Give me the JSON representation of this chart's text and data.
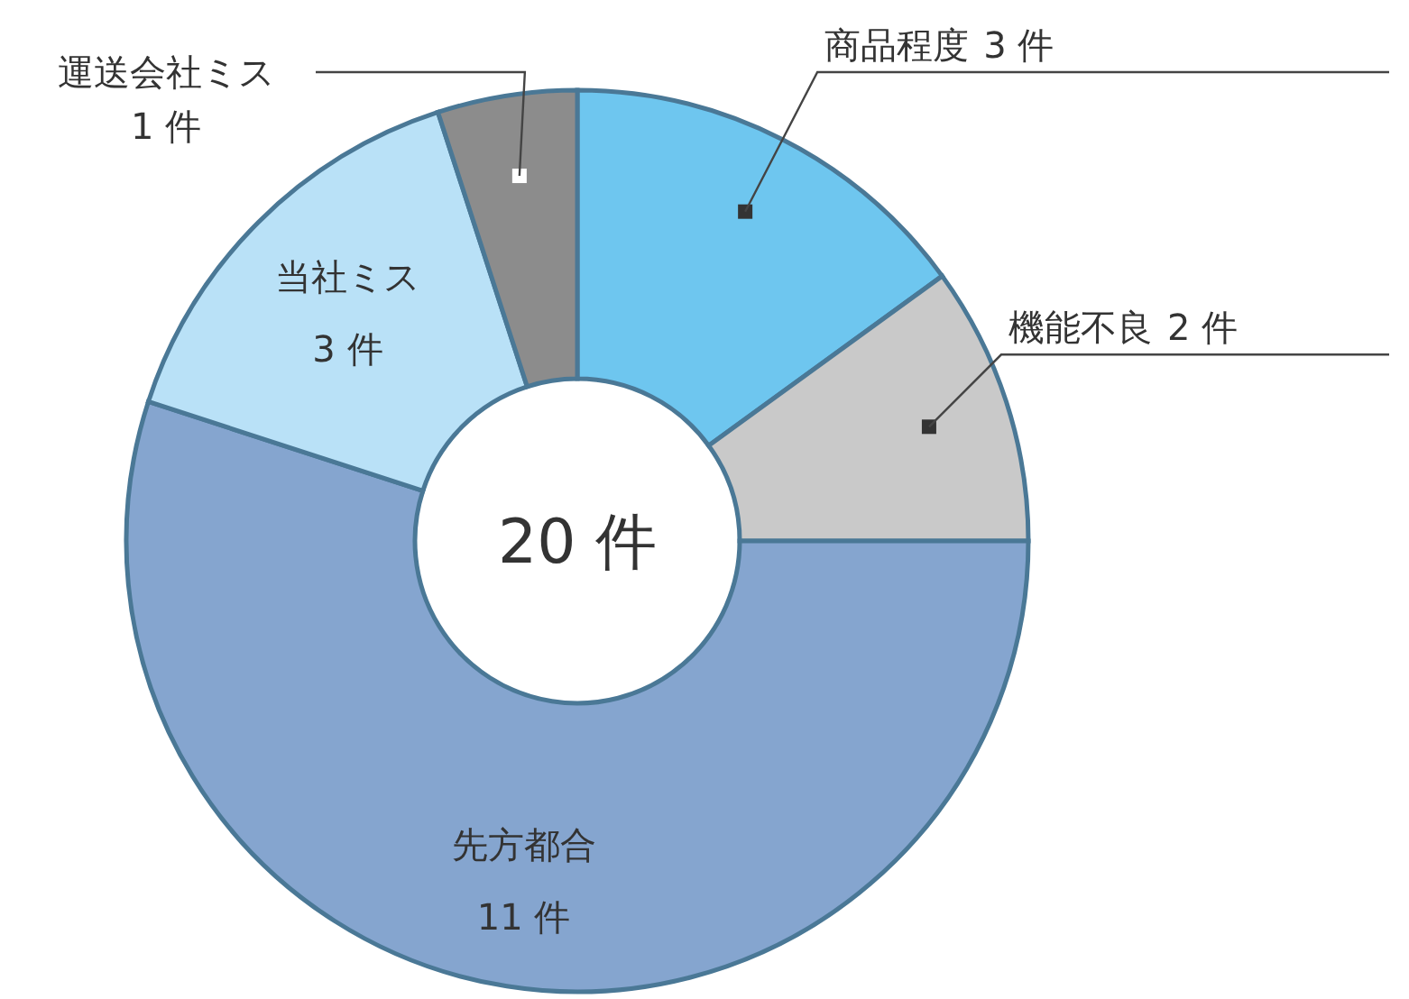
{
  "chart_data": {
    "type": "donut",
    "categories": [
      "商品程度",
      "機能不良",
      "先方都合",
      "当社ミス",
      "運送会社ミス"
    ],
    "values": [
      3,
      2,
      11,
      3,
      1
    ],
    "value_labels": [
      "3 件",
      "2 件",
      "11 件",
      "3 件",
      "1 件"
    ],
    "colors": [
      "#6ec6ef",
      "#c9c9c9",
      "#85a5cf",
      "#b9e1f7",
      "#8c8c8c"
    ],
    "annotations": [
      "20 件"
    ]
  }
}
